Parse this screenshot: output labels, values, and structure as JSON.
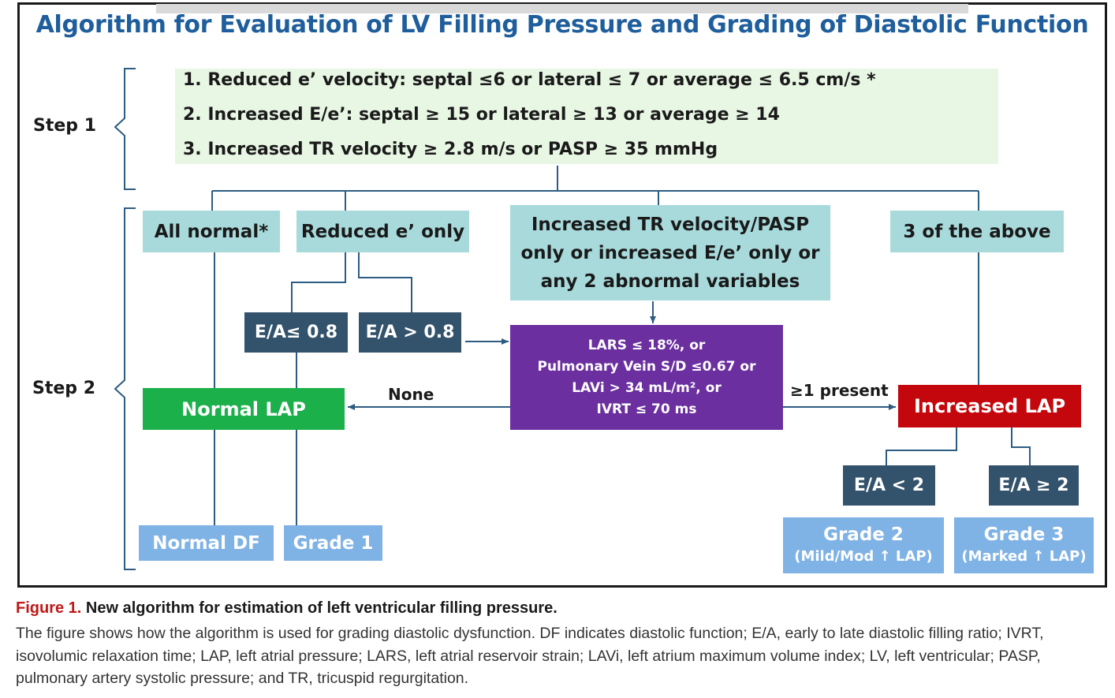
{
  "title": "Algorithm for Evaluation of LV Filling Pressure and Grading of Diastolic Function",
  "step1": {
    "label": "Step 1",
    "criteria": [
      "1. Reduced e’ velocity:  septal ≤6  or lateral ≤ 7 or average ≤ 6.5 cm/s *",
      "2. Increased E/e’: septal ≥ 15 or lateral ≥ 13 or average ≥ 14",
      "3. Increased TR velocity ≥ 2.8 m/s or PASP ≥ 35 mmHg"
    ]
  },
  "step2": {
    "label": "Step 2",
    "branches": {
      "all_normal": "All normal*",
      "reduced_e_only": "Reduced e’ only",
      "increased_tr": [
        "Increased TR velocity/PASP",
        "only or  increased E/e’ only or",
        "any 2 abnormal variables"
      ],
      "three_above": "3 of the above"
    },
    "ea_low": "E/A≤ 0.8",
    "ea_high": "E/A > 0.8",
    "supplemental": [
      "LARS ≤ 18%, or",
      "Pulmonary Vein S/D ≤0.67 or",
      "LAVi > 34 mL/m², or",
      "IVRT  ≤ 70 ms"
    ],
    "none_label": "None",
    "present_label": "≥1 present",
    "normal_lap": "Normal LAP",
    "increased_lap": "Increased LAP",
    "ea_lt2": "E/A < 2",
    "ea_ge2": "E/A ≥ 2",
    "outcomes": {
      "normal_df": "Normal DF",
      "grade1": "Grade 1",
      "grade2": "Grade 2",
      "grade2_sub": "(Mild/Mod ↑ LAP)",
      "grade3": "Grade 3",
      "grade3_sub": "(Marked ↑ LAP)"
    }
  },
  "caption": {
    "figure_label": "Figure 1.",
    "figure_title": " New algorithm for estimation of left ventricular filling pressure.",
    "body": "The figure shows how the algorithm is used for grading diastolic dysfunction. DF indicates diastolic function; E/A, early to late diastolic filling ratio; IVRT, isovolumic relaxation time; LAP, left atrial pressure; LARS, left atrial reservoir strain; LAVi, left atrium maximum volume index; LV, left ventricular; PASP, pulmonary artery systolic pressure; and TR, tricuspid regurgitation."
  },
  "colors": {
    "title": "#1f5e9c",
    "teal": "#a8dadc",
    "navy": "#33526b",
    "purple": "#6b2fa0",
    "green": "#1cb04b",
    "red": "#c4070c",
    "lightblue": "#7fb2e5",
    "criteria_bg": "#e8f6e4",
    "caption_label": "#c01818"
  }
}
